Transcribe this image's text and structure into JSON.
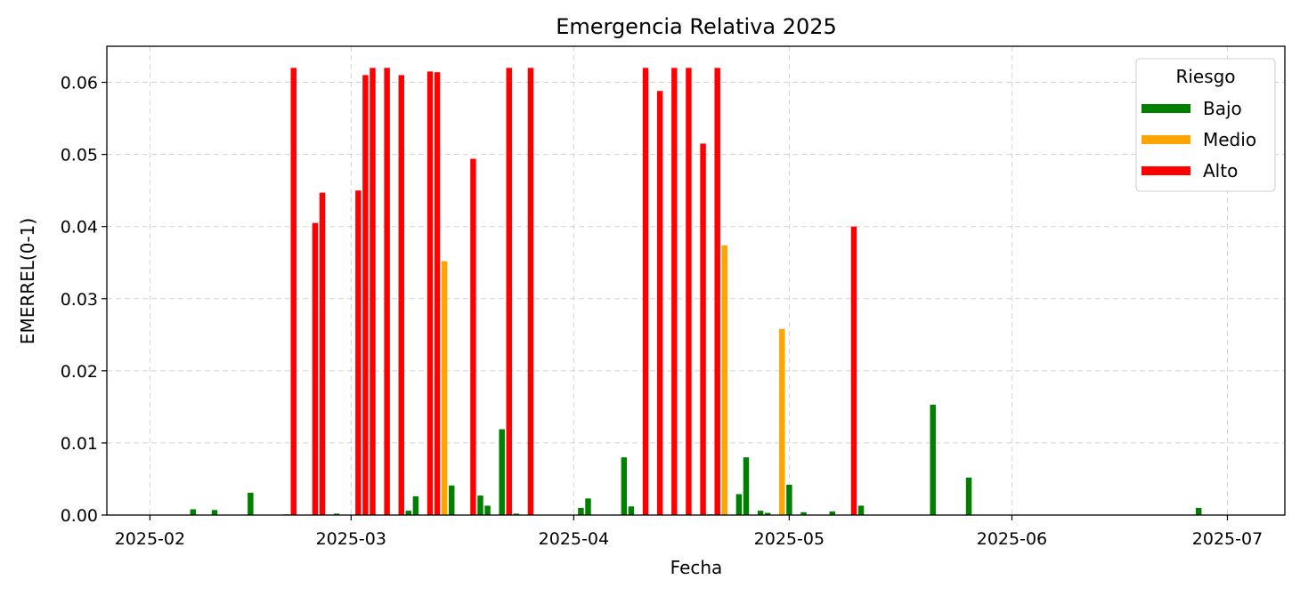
{
  "chart_data": {
    "type": "bar",
    "title": "Emergencia Relativa 2025",
    "xlabel": "Fecha",
    "ylabel": "EMERREL(0-1)",
    "xlim": [
      "2025-01-26",
      "2025-07-09"
    ],
    "ylim": [
      0,
      0.065
    ],
    "x_ticks": [
      "2025-02-01",
      "2025-03-01",
      "2025-04-01",
      "2025-05-01",
      "2025-06-01",
      "2025-07-01"
    ],
    "x_tick_labels": [
      "2025-02",
      "2025-03",
      "2025-04",
      "2025-05",
      "2025-06",
      "2025-07"
    ],
    "y_ticks": [
      0.0,
      0.01,
      0.02,
      0.03,
      0.04,
      0.05,
      0.06
    ],
    "y_tick_labels": [
      "0.00",
      "0.01",
      "0.02",
      "0.03",
      "0.04",
      "0.05",
      "0.06"
    ],
    "grid": true,
    "legend": {
      "title": "Riesgo",
      "placement": "top-right",
      "entries": [
        {
          "label": "Bajo",
          "color": "#008000"
        },
        {
          "label": "Medio",
          "color": "#FFA500"
        },
        {
          "label": "Alto",
          "color": "#FF0000"
        }
      ]
    },
    "bars": [
      {
        "date": "2025-02-07",
        "value": 0.0008,
        "risk": "Bajo"
      },
      {
        "date": "2025-02-10",
        "value": 0.0007,
        "risk": "Bajo"
      },
      {
        "date": "2025-02-15",
        "value": 0.0031,
        "risk": "Bajo"
      },
      {
        "date": "2025-02-20",
        "value": 0.0001,
        "risk": "Bajo"
      },
      {
        "date": "2025-02-21",
        "value": 0.062,
        "risk": "Alto"
      },
      {
        "date": "2025-02-24",
        "value": 0.0405,
        "risk": "Alto"
      },
      {
        "date": "2025-02-25",
        "value": 0.0447,
        "risk": "Alto"
      },
      {
        "date": "2025-02-27",
        "value": 0.0002,
        "risk": "Bajo"
      },
      {
        "date": "2025-03-02",
        "value": 0.045,
        "risk": "Alto"
      },
      {
        "date": "2025-03-03",
        "value": 0.061,
        "risk": "Alto"
      },
      {
        "date": "2025-03-04",
        "value": 0.062,
        "risk": "Alto"
      },
      {
        "date": "2025-03-06",
        "value": 0.062,
        "risk": "Alto"
      },
      {
        "date": "2025-03-08",
        "value": 0.061,
        "risk": "Alto"
      },
      {
        "date": "2025-03-09",
        "value": 0.0006,
        "risk": "Bajo"
      },
      {
        "date": "2025-03-10",
        "value": 0.0026,
        "risk": "Bajo"
      },
      {
        "date": "2025-03-12",
        "value": 0.0615,
        "risk": "Alto"
      },
      {
        "date": "2025-03-13",
        "value": 0.0614,
        "risk": "Alto"
      },
      {
        "date": "2025-03-14",
        "value": 0.0352,
        "risk": "Medio"
      },
      {
        "date": "2025-03-15",
        "value": 0.0041,
        "risk": "Bajo"
      },
      {
        "date": "2025-03-18",
        "value": 0.0494,
        "risk": "Alto"
      },
      {
        "date": "2025-03-19",
        "value": 0.0027,
        "risk": "Bajo"
      },
      {
        "date": "2025-03-20",
        "value": 0.0013,
        "risk": "Bajo"
      },
      {
        "date": "2025-03-22",
        "value": 0.0119,
        "risk": "Bajo"
      },
      {
        "date": "2025-03-23",
        "value": 0.062,
        "risk": "Alto"
      },
      {
        "date": "2025-03-24",
        "value": 0.0002,
        "risk": "Bajo"
      },
      {
        "date": "2025-03-26",
        "value": 0.062,
        "risk": "Alto"
      },
      {
        "date": "2025-04-02",
        "value": 0.001,
        "risk": "Bajo"
      },
      {
        "date": "2025-04-03",
        "value": 0.0023,
        "risk": "Bajo"
      },
      {
        "date": "2025-04-08",
        "value": 0.008,
        "risk": "Bajo"
      },
      {
        "date": "2025-04-09",
        "value": 0.0012,
        "risk": "Bajo"
      },
      {
        "date": "2025-04-11",
        "value": 0.062,
        "risk": "Alto"
      },
      {
        "date": "2025-04-13",
        "value": 0.0588,
        "risk": "Alto"
      },
      {
        "date": "2025-04-15",
        "value": 0.062,
        "risk": "Alto"
      },
      {
        "date": "2025-04-17",
        "value": 0.062,
        "risk": "Alto"
      },
      {
        "date": "2025-04-19",
        "value": 0.0515,
        "risk": "Alto"
      },
      {
        "date": "2025-04-20",
        "value": 0.0001,
        "risk": "Bajo"
      },
      {
        "date": "2025-04-21",
        "value": 0.062,
        "risk": "Alto"
      },
      {
        "date": "2025-04-22",
        "value": 0.0374,
        "risk": "Medio"
      },
      {
        "date": "2025-04-24",
        "value": 0.0029,
        "risk": "Bajo"
      },
      {
        "date": "2025-04-25",
        "value": 0.008,
        "risk": "Bajo"
      },
      {
        "date": "2025-04-27",
        "value": 0.0006,
        "risk": "Bajo"
      },
      {
        "date": "2025-04-28",
        "value": 0.0003,
        "risk": "Bajo"
      },
      {
        "date": "2025-04-30",
        "value": 0.0258,
        "risk": "Medio"
      },
      {
        "date": "2025-05-01",
        "value": 0.0042,
        "risk": "Bajo"
      },
      {
        "date": "2025-05-03",
        "value": 0.0004,
        "risk": "Bajo"
      },
      {
        "date": "2025-05-07",
        "value": 0.0005,
        "risk": "Bajo"
      },
      {
        "date": "2025-05-10",
        "value": 0.04,
        "risk": "Alto"
      },
      {
        "date": "2025-05-11",
        "value": 0.0013,
        "risk": "Bajo"
      },
      {
        "date": "2025-05-21",
        "value": 0.0153,
        "risk": "Bajo"
      },
      {
        "date": "2025-05-26",
        "value": 0.0052,
        "risk": "Bajo"
      },
      {
        "date": "2025-06-27",
        "value": 0.001,
        "risk": "Bajo"
      }
    ]
  }
}
